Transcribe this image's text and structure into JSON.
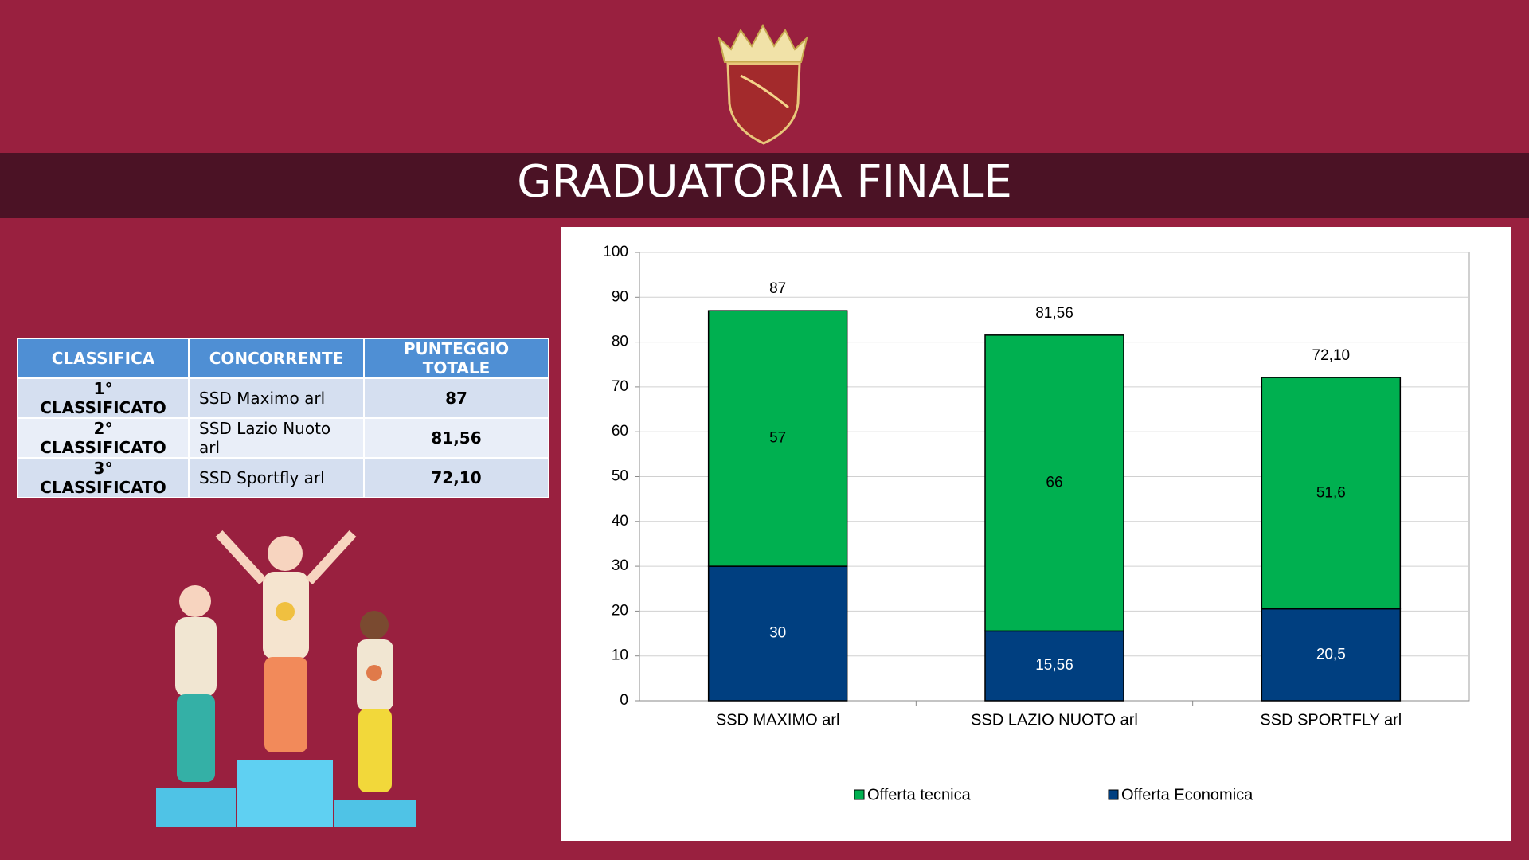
{
  "title": "GRADUATORIA FINALE",
  "table": {
    "headers": [
      "CLASSIFICA",
      "CONCORRENTE",
      "PUNTEGGIO TOTALE"
    ],
    "rows": [
      [
        "1° CLASSIFICATO",
        "SSD Maximo arl",
        "87"
      ],
      [
        "2° CLASSIFICATO",
        "SSD Lazio Nuoto arl",
        "81,56"
      ],
      [
        "3° CLASSIFICATO",
        "SSD Sportfly arl",
        "72,10"
      ]
    ]
  },
  "chart_data": {
    "type": "stacked_bar",
    "categories": [
      "SSD MAXIMO arl",
      "SSD LAZIO NUOTO arl",
      "SSD SPORTFLY arl"
    ],
    "series": [
      {
        "name": "Offerta tecnica",
        "color": "#00b050",
        "values": [
          57,
          66,
          51.6
        ],
        "value_labels": [
          "57",
          "66",
          "51,6"
        ]
      },
      {
        "name": "Offerta Economica",
        "color": "#003f80",
        "values": [
          30,
          15.56,
          20.5
        ],
        "value_labels": [
          "30",
          "15,56",
          "20,5"
        ]
      }
    ],
    "totals": [
      87,
      81.56,
      72.1
    ],
    "total_labels": [
      "87",
      "81,56",
      "72,10"
    ],
    "ylim": [
      0,
      100
    ],
    "yticks": [
      0,
      10,
      20,
      30,
      40,
      50,
      60,
      70,
      80,
      90,
      100
    ],
    "grid": true,
    "legend": "bottom"
  }
}
